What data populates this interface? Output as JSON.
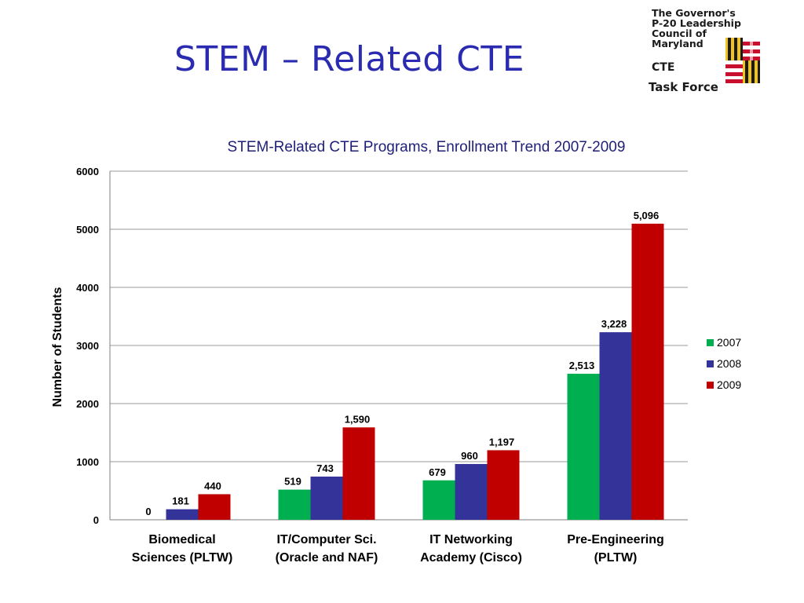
{
  "slide": {
    "title": "STEM – Related CTE"
  },
  "logo": {
    "lines": [
      "The Governor's",
      "P-20 Leadership",
      "Council of",
      "Maryland"
    ],
    "cte": "CTE",
    "task_force": "Task Force",
    "flag_colors": {
      "gold": "#f0c419",
      "black": "#1a1a1a",
      "red": "#c8102e",
      "white": "#ffffff"
    }
  },
  "chart_data": {
    "type": "bar",
    "title": "STEM-Related CTE Programs, Enrollment Trend 2007-2009",
    "ylabel": "Number of Students",
    "xlabel": "",
    "ylim": [
      0,
      6000
    ],
    "yticks": [
      0,
      1000,
      2000,
      3000,
      4000,
      5000,
      6000
    ],
    "grid": true,
    "legend_position": "right",
    "categories": [
      [
        "Biomedical",
        "Sciences (PLTW)"
      ],
      [
        "IT/Computer Sci.",
        "(Oracle and NAF)"
      ],
      [
        "IT Networking",
        "Academy (Cisco)"
      ],
      [
        "Pre-Engineering",
        "(PLTW)"
      ]
    ],
    "series": [
      {
        "name": "2007",
        "color": "#00b050",
        "values": [
          0,
          519,
          679,
          2513
        ],
        "labels": [
          "0",
          "519",
          "679",
          "2,513"
        ]
      },
      {
        "name": "2008",
        "color": "#333399",
        "values": [
          181,
          743,
          960,
          3228
        ],
        "labels": [
          "181",
          "743",
          "960",
          "3,228"
        ]
      },
      {
        "name": "2009",
        "color": "#c00000",
        "values": [
          440,
          1590,
          1197,
          5096
        ],
        "labels": [
          "440",
          "1,590",
          "1,197",
          "5,096"
        ]
      }
    ]
  }
}
